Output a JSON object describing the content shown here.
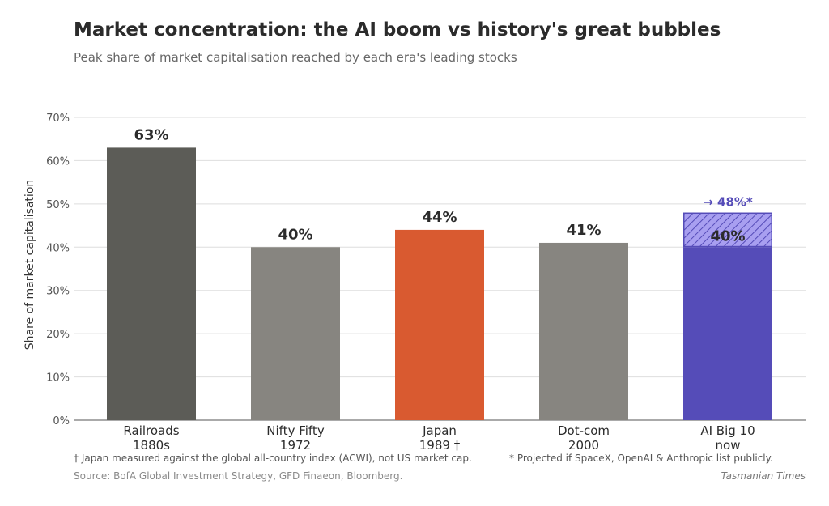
{
  "header": {
    "title": "Market concentration: the AI boom vs history's great bubbles",
    "subtitle": "Peak share of market capitalisation reached by each era's leading stocks"
  },
  "footer": {
    "note_left": "† Japan measured against the global all-country index (ACWI), not US market cap.",
    "note_right": "* Projected if SpaceX, OpenAI & Anthropic list publicly.",
    "source": "Source: BofA Global Investment Strategy, GFD Finaeon, Bloomberg.",
    "brand": "Tasmanian Times"
  },
  "chart_data": {
    "type": "bar",
    "ylabel": "Share of market capitalisation",
    "xlabel": "",
    "ylim": [
      0,
      70
    ],
    "yticks": [
      0,
      10,
      20,
      30,
      40,
      50,
      60,
      70
    ],
    "ytick_labels": [
      "0%",
      "10%",
      "20%",
      "30%",
      "40%",
      "50%",
      "60%",
      "70%"
    ],
    "grid": true,
    "categories": [
      [
        "Railroads",
        "1880s"
      ],
      [
        "Nifty Fifty",
        "1972"
      ],
      [
        "Japan",
        "1989 †"
      ],
      [
        "Dot-com",
        "2000"
      ],
      [
        "AI Big 10",
        "now"
      ]
    ],
    "values": [
      63,
      40,
      44,
      41,
      40
    ],
    "value_labels": [
      "63%",
      "40%",
      "44%",
      "41%",
      "40%"
    ],
    "colors": [
      "#5c5c57",
      "#878580",
      "#d95a30",
      "#878580",
      "#554cb8"
    ],
    "projection": {
      "category_index": 4,
      "from": 40,
      "to": 48,
      "label": "→ 48%*",
      "color": "#554cb8",
      "fill": "#a89ff0"
    }
  }
}
